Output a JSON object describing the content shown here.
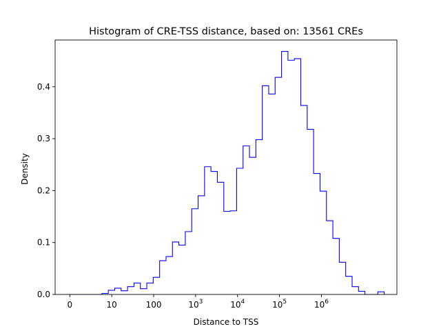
{
  "chart_data": {
    "type": "histogram",
    "title": "Histogram of CRE-TSS distance, based on: 13561 CREs",
    "xlabel": "Distance to TSS",
    "ylabel": "Density",
    "x_scale": "log10(distance + 1)",
    "xlim": [
      -0.35,
      7.8
    ],
    "ylim": [
      0,
      0.49
    ],
    "x_ticks": [
      {
        "value": 0,
        "label": "0",
        "exp": ""
      },
      {
        "value": 1,
        "label": "10",
        "exp": ""
      },
      {
        "value": 2,
        "label": "100",
        "exp": ""
      },
      {
        "value": 3,
        "label": "10",
        "exp": "3"
      },
      {
        "value": 4,
        "label": "10",
        "exp": "4"
      },
      {
        "value": 5,
        "label": "10",
        "exp": "5"
      },
      {
        "value": 6,
        "label": "10",
        "exp": "6"
      }
    ],
    "y_ticks": [
      {
        "value": 0.0,
        "label": "0.0"
      },
      {
        "value": 0.1,
        "label": "0.1"
      },
      {
        "value": 0.2,
        "label": "0.2"
      },
      {
        "value": 0.3,
        "label": "0.3"
      },
      {
        "value": 0.4,
        "label": "0.4"
      }
    ],
    "bin_edges": [
      0.0,
      0.153,
      0.306,
      0.459,
      0.612,
      0.765,
      0.918,
      1.071,
      1.224,
      1.377,
      1.53,
      1.683,
      1.836,
      1.989,
      2.142,
      2.295,
      2.448,
      2.601,
      2.754,
      2.907,
      3.06,
      3.213,
      3.366,
      3.519,
      3.672,
      3.825,
      3.978,
      4.131,
      4.284,
      4.437,
      4.59,
      4.743,
      4.896,
      5.049,
      5.202,
      5.355,
      5.508,
      5.661,
      5.814,
      5.967,
      6.12,
      6.273,
      6.426,
      6.579,
      6.732,
      6.885,
      7.038,
      7.191,
      7.344,
      7.497
    ],
    "density": [
      0,
      0,
      0,
      0,
      0,
      0.002,
      0.008,
      0.012,
      0.007,
      0.015,
      0.022,
      0.011,
      0.022,
      0.033,
      0.065,
      0.073,
      0.101,
      0.095,
      0.121,
      0.165,
      0.19,
      0.246,
      0.237,
      0.216,
      0.16,
      0.161,
      0.243,
      0.286,
      0.264,
      0.298,
      0.402,
      0.386,
      0.418,
      0.468,
      0.451,
      0.454,
      0.364,
      0.318,
      0.233,
      0.199,
      0.142,
      0.108,
      0.062,
      0.035,
      0.015,
      0.006,
      0,
      0,
      0.005
    ],
    "line_color": "#0000ff",
    "grid": false,
    "legend": "none"
  }
}
